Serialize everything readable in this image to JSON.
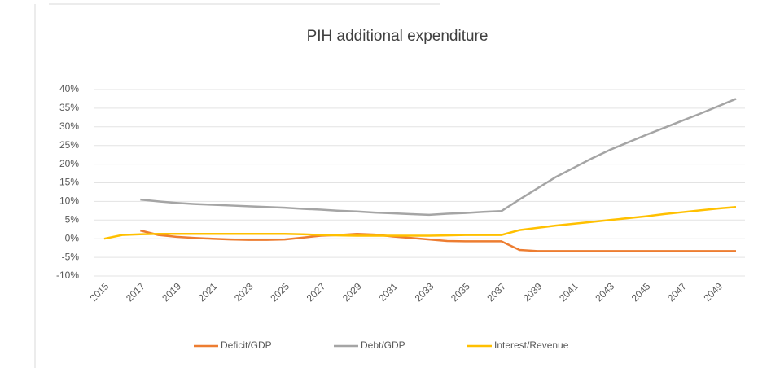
{
  "chart_data": {
    "type": "line",
    "title": "PIH additional expenditure",
    "categories": [
      2015,
      null,
      2017,
      null,
      2019,
      null,
      2021,
      null,
      2023,
      null,
      2025,
      null,
      2027,
      null,
      2029,
      null,
      2031,
      null,
      2033,
      null,
      2035,
      null,
      2037,
      null,
      2039,
      null,
      2041,
      null,
      2043,
      null,
      2045,
      null,
      2047,
      null,
      2049,
      null
    ],
    "series": [
      {
        "name": "Deficit/GDP",
        "color": "#ED7D31",
        "values": [
          null,
          null,
          2.2,
          1.0,
          0.5,
          0.2,
          0,
          -0.2,
          -0.3,
          -0.3,
          -0.2,
          0.3,
          0.8,
          1.0,
          1.3,
          1.1,
          0.6,
          0.2,
          -0.2,
          -0.6,
          -0.7,
          -0.7,
          -0.7,
          -3.0,
          -3.3,
          -3.3,
          -3.3,
          -3.3,
          -3.3,
          -3.3,
          -3.3,
          -3.3,
          -3.3,
          -3.3,
          -3.3,
          -3.3
        ]
      },
      {
        "name": "Debt/GDP",
        "color": "#A5A5A5",
        "values": [
          null,
          null,
          10.5,
          10.0,
          9.6,
          9.3,
          9.1,
          8.9,
          8.7,
          8.5,
          8.3,
          8.0,
          7.8,
          7.5,
          7.3,
          7.0,
          6.8,
          6.6,
          6.4,
          6.7,
          6.9,
          7.2,
          7.4,
          10.5,
          13.5,
          16.5,
          19.0,
          21.5,
          23.8,
          25.8,
          27.8,
          29.7,
          31.6,
          33.5,
          35.5,
          37.5
        ]
      },
      {
        "name": "Interest/Revenue",
        "color": "#FFC000",
        "values": [
          0,
          1.0,
          1.2,
          1.3,
          1.3,
          1.3,
          1.3,
          1.3,
          1.3,
          1.3,
          1.3,
          1.2,
          1.0,
          0.9,
          0.8,
          0.8,
          0.8,
          0.8,
          0.8,
          0.9,
          1.0,
          1.0,
          1.0,
          2.3,
          2.9,
          3.5,
          4.0,
          4.5,
          5.0,
          5.5,
          6.0,
          6.6,
          7.1,
          7.6,
          8.1,
          8.5
        ]
      }
    ],
    "ylim": [
      -10,
      40
    ],
    "yticks": [
      {
        "value": -10,
        "label": "-10%"
      },
      {
        "value": -5,
        "label": "-5%"
      },
      {
        "value": 0,
        "label": "0%"
      },
      {
        "value": 5,
        "label": "5%"
      },
      {
        "value": 10,
        "label": "10%"
      },
      {
        "value": 15,
        "label": "15%"
      },
      {
        "value": 20,
        "label": "20%"
      },
      {
        "value": 25,
        "label": "25%"
      },
      {
        "value": 30,
        "label": "30%"
      },
      {
        "value": 35,
        "label": "35%"
      },
      {
        "value": 40,
        "label": "40%"
      }
    ],
    "grid": true
  }
}
